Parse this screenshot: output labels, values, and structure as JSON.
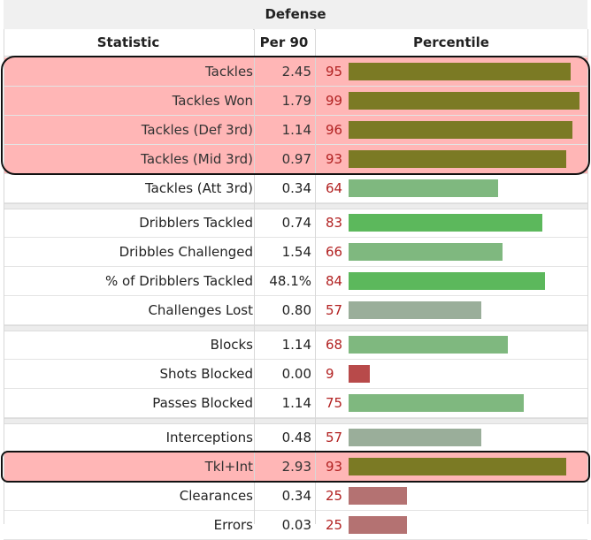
{
  "title": "Defense",
  "columns": {
    "statistic": "Statistic",
    "per90": "Per 90",
    "percentile": "Percentile"
  },
  "chart_data": {
    "type": "bar",
    "title": "Defense",
    "xlabel": "Percentile",
    "xlim": [
      0,
      100
    ],
    "categories": [
      "Tackles",
      "Tackles Won",
      "Tackles (Def 3rd)",
      "Tackles (Mid 3rd)",
      "Tackles (Att 3rd)",
      "Dribblers Tackled",
      "Dribbles Challenged",
      "% of Dribblers Tackled",
      "Challenges Lost",
      "Blocks",
      "Shots Blocked",
      "Passes Blocked",
      "Interceptions",
      "Tkl+Int",
      "Clearances",
      "Errors"
    ],
    "per90": [
      "2.45",
      "1.79",
      "1.14",
      "0.97",
      "0.34",
      "0.74",
      "1.54",
      "48.1%",
      "0.80",
      "1.14",
      "0.00",
      "1.14",
      "0.48",
      "2.93",
      "0.34",
      "0.03"
    ],
    "values": [
      95,
      99,
      96,
      93,
      64,
      83,
      66,
      84,
      57,
      68,
      9,
      75,
      57,
      93,
      25,
      25
    ],
    "highlighted": [
      "Tackles",
      "Tackles Won",
      "Tackles (Def 3rd)",
      "Tackles (Mid 3rd)",
      "Tkl+Int"
    ],
    "group_sizes": [
      5,
      4,
      3,
      4
    ],
    "colors": {
      "highlight_bar": "#7b7a24",
      "high": "#5cb85c",
      "mid_high": "#7fb87f",
      "mid": "#9aae9a",
      "low_mid": "#b47272",
      "low": "#b84a4a",
      "row_highlight": "#ffb6b6",
      "percentile_text": "#b22222"
    }
  }
}
